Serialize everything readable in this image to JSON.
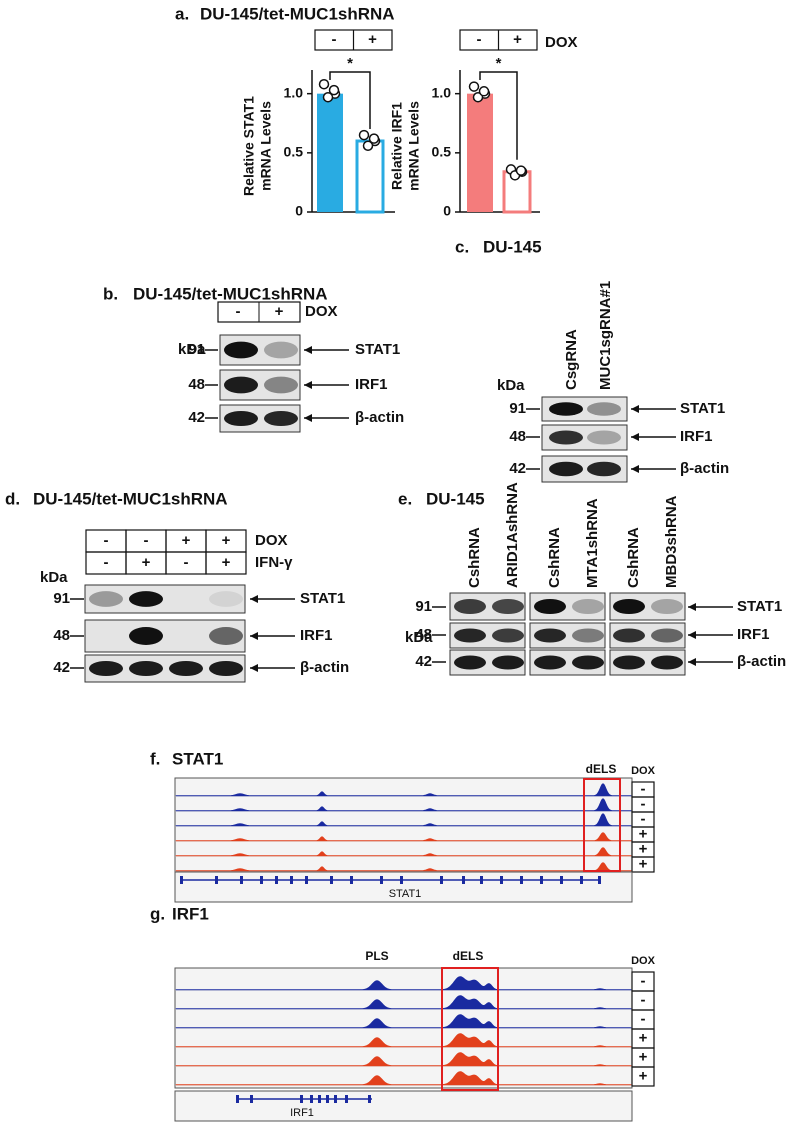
{
  "panel_a": {
    "label": "a.",
    "title": "DU-145/tet-MUC1shRNA",
    "treatment": "DOX"
  },
  "chart_data": [
    {
      "type": "bar",
      "ylabel": [
        "Relative STAT1",
        "mRNA Levels"
      ],
      "categories": [
        "-",
        "+"
      ],
      "values": [
        1.0,
        0.6
      ],
      "points": [
        [
          1.08,
          1.0,
          0.97,
          1.03
        ],
        [
          0.65,
          0.6,
          0.56,
          0.62
        ]
      ],
      "color": "#29abe2",
      "annotation": "*",
      "ylim": [
        0,
        1.2
      ],
      "yticks": [
        0,
        0.5,
        {
          "value": 1,
          "label": "1.0"
        }
      ]
    },
    {
      "type": "bar",
      "ylabel": [
        "Relative IRF1",
        "mRNA Levels"
      ],
      "categories": [
        "-",
        "+"
      ],
      "values": [
        1.0,
        0.34
      ],
      "points": [
        [
          1.06,
          1.0,
          0.97,
          1.02
        ],
        [
          0.36,
          0.34,
          0.31,
          0.35
        ]
      ],
      "color": "#f47c7c",
      "annotation": "*",
      "ylim": [
        0,
        1.2
      ],
      "yticks": [
        0,
        0.5,
        {
          "value": 1,
          "label": "1.0"
        }
      ]
    }
  ],
  "panel_b": {
    "label": "b.",
    "title": "DU-145/tet-MUC1shRNA",
    "lanes": [
      "-",
      "+"
    ],
    "treatment": "DOX",
    "kda_label": "kDa",
    "rows": [
      {
        "kda": 91,
        "protein": "STAT1"
      },
      {
        "kda": 48,
        "protein": "IRF1"
      },
      {
        "kda": 42,
        "protein": "β-actin"
      }
    ]
  },
  "panel_c": {
    "label": "c.",
    "title": "DU-145",
    "lanes": [
      "CsgRNA",
      "MUC1sgRNA#1"
    ],
    "kda_label": "kDa",
    "rows": [
      {
        "kda": 91,
        "protein": "STAT1"
      },
      {
        "kda": 48,
        "protein": "IRF1"
      },
      {
        "kda": 42,
        "protein": "β-actin"
      }
    ]
  },
  "panel_d": {
    "label": "d.",
    "title": "DU-145/tet-MUC1shRNA",
    "conditions": [
      {
        "name": "DOX",
        "lanes": [
          "-",
          "-",
          "+",
          "+"
        ]
      },
      {
        "name": "IFN-γ",
        "lanes": [
          "-",
          "+",
          "-",
          "+"
        ]
      }
    ],
    "kda_label": "kDa",
    "rows": [
      {
        "kda": 91,
        "protein": "STAT1"
      },
      {
        "kda": 48,
        "protein": "IRF1"
      },
      {
        "kda": 42,
        "protein": "β-actin"
      }
    ]
  },
  "panel_e": {
    "label": "e.",
    "title": "DU-145",
    "lanes": [
      "CshRNA",
      "ARID1AshRNA",
      "CshRNA",
      "MTA1shRNA",
      "CshRNA",
      "MBD3shRNA"
    ],
    "kda_label": "kDa",
    "rows": [
      {
        "kda": 91,
        "protein": "STAT1"
      },
      {
        "kda": 48,
        "protein": "IRF1"
      },
      {
        "kda": 42,
        "protein": "β-actin"
      }
    ]
  },
  "panel_f": {
    "label": "f.",
    "title": "STAT1",
    "regions": [
      "dELS"
    ],
    "dox_header": "DOX",
    "dox": [
      "-",
      "-",
      "-",
      "+",
      "+",
      "+"
    ],
    "gene": "STAT1"
  },
  "panel_g": {
    "label": "g.",
    "title": "IRF1",
    "regions": [
      "PLS",
      "dELS"
    ],
    "dox_header": "DOX",
    "dox": [
      "-",
      "-",
      "-",
      "+",
      "+",
      "+"
    ],
    "gene": "IRF1"
  }
}
